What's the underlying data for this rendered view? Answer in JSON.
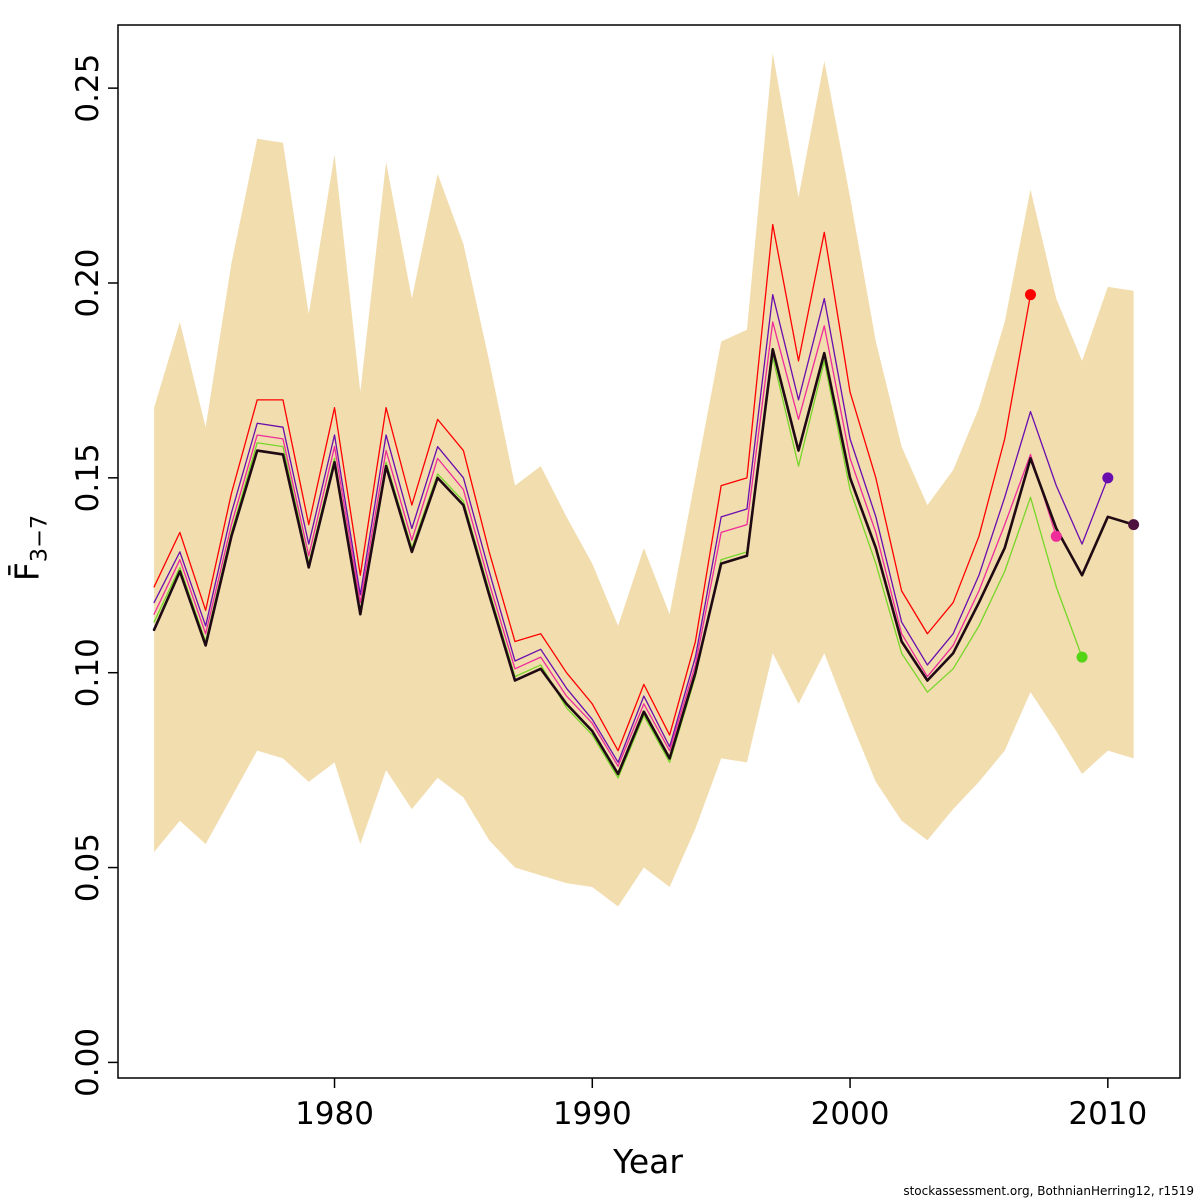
{
  "footer": {
    "text": "stockassessment.org, BothnianHerring12, r1519"
  },
  "axes": {
    "xlabel": "Year",
    "ylabel_main": "F̄",
    "ylabel_sub": "3−7",
    "x_ticks": [
      1980,
      1990,
      2000,
      2010
    ],
    "y_ticks": [
      "0.00",
      "0.05",
      "0.10",
      "0.15",
      "0.20",
      "0.25"
    ],
    "x_range": [
      1971.6,
      2012.8
    ],
    "y_range": [
      -0.004,
      0.2662
    ]
  },
  "chart_data": {
    "type": "line",
    "title": "",
    "xlabel": "Year",
    "ylabel": "F̄3−7",
    "legend_position": "none",
    "grid": false,
    "x": [
      1973,
      1974,
      1975,
      1976,
      1977,
      1978,
      1979,
      1980,
      1981,
      1982,
      1983,
      1984,
      1985,
      1986,
      1987,
      1988,
      1989,
      1990,
      1991,
      1992,
      1993,
      1994,
      1995,
      1996,
      1997,
      1998,
      1999,
      2000,
      2001,
      2002,
      2003,
      2004,
      2005,
      2006,
      2007,
      2008,
      2009,
      2010,
      2011
    ],
    "band": {
      "name": "confidence-interval",
      "color": "#f2ddae",
      "upper": [
        0.168,
        0.19,
        0.163,
        0.205,
        0.237,
        0.236,
        0.192,
        0.233,
        0.172,
        0.231,
        0.196,
        0.228,
        0.21,
        0.18,
        0.148,
        0.153,
        0.14,
        0.128,
        0.112,
        0.132,
        0.115,
        0.15,
        0.185,
        0.188,
        0.259,
        0.222,
        0.257,
        0.222,
        0.185,
        0.158,
        0.143,
        0.152,
        0.168,
        0.19,
        0.224,
        0.196,
        0.18,
        0.199,
        0.198
      ],
      "lower": [
        0.054,
        0.062,
        0.056,
        0.068,
        0.08,
        0.078,
        0.072,
        0.077,
        0.056,
        0.075,
        0.065,
        0.073,
        0.068,
        0.057,
        0.05,
        0.048,
        0.046,
        0.045,
        0.04,
        0.05,
        0.045,
        0.06,
        0.078,
        0.077,
        0.105,
        0.092,
        0.105,
        0.088,
        0.072,
        0.062,
        0.057,
        0.065,
        0.072,
        0.08,
        0.095,
        0.085,
        0.074,
        0.08,
        0.078
      ]
    },
    "series": [
      {
        "name": "retro-2007",
        "color": "#ff0000",
        "dot_color": "#ff0000",
        "width": 1.3,
        "end_year": 2007,
        "end_value": 0.197,
        "values": [
          0.122,
          0.136,
          0.116,
          0.146,
          0.17,
          0.17,
          0.138,
          0.168,
          0.125,
          0.168,
          0.143,
          0.165,
          0.157,
          0.131,
          0.108,
          0.11,
          0.1,
          0.092,
          0.08,
          0.097,
          0.084,
          0.108,
          0.148,
          0.15,
          0.215,
          0.18,
          0.213,
          0.172,
          0.15,
          0.121,
          0.11,
          0.118,
          0.135,
          0.16,
          0.197
        ]
      },
      {
        "name": "retro-2010",
        "color": "#6a0dad",
        "dot_color": "#6a0dad",
        "width": 1.3,
        "end_year": 2010,
        "end_value": 0.15,
        "values": [
          0.118,
          0.131,
          0.112,
          0.141,
          0.164,
          0.163,
          0.133,
          0.161,
          0.12,
          0.161,
          0.137,
          0.158,
          0.15,
          0.126,
          0.103,
          0.106,
          0.096,
          0.088,
          0.077,
          0.094,
          0.081,
          0.104,
          0.14,
          0.142,
          0.197,
          0.17,
          0.196,
          0.16,
          0.14,
          0.113,
          0.102,
          0.11,
          0.125,
          0.145,
          0.167,
          0.148,
          0.133,
          0.15
        ]
      },
      {
        "name": "retro-2008",
        "color": "#ee2c9a",
        "dot_color": "#ee2c9a",
        "width": 1.3,
        "end_year": 2008,
        "end_value": 0.135,
        "values": [
          0.115,
          0.129,
          0.11,
          0.138,
          0.161,
          0.16,
          0.13,
          0.158,
          0.118,
          0.157,
          0.134,
          0.155,
          0.147,
          0.123,
          0.101,
          0.104,
          0.094,
          0.087,
          0.076,
          0.092,
          0.08,
          0.102,
          0.136,
          0.138,
          0.19,
          0.165,
          0.189,
          0.155,
          0.136,
          0.11,
          0.099,
          0.107,
          0.121,
          0.138,
          0.156,
          0.135
        ]
      },
      {
        "name": "retro-2009",
        "color": "#77d62a",
        "dot_color": "#55d415",
        "width": 1.3,
        "end_year": 2009,
        "end_value": 0.104,
        "values": [
          0.113,
          0.127,
          0.108,
          0.136,
          0.159,
          0.158,
          0.128,
          0.155,
          0.116,
          0.154,
          0.132,
          0.151,
          0.144,
          0.121,
          0.099,
          0.102,
          0.091,
          0.084,
          0.073,
          0.089,
          0.077,
          0.099,
          0.129,
          0.131,
          0.181,
          0.153,
          0.18,
          0.147,
          0.128,
          0.105,
          0.095,
          0.101,
          0.112,
          0.126,
          0.145,
          0.122,
          0.104
        ]
      },
      {
        "name": "final-2011",
        "color": "#1f0a14",
        "dot_color": "#4d1240",
        "width": 2.6,
        "end_year": 2011,
        "end_value": 0.138,
        "values": [
          0.111,
          0.126,
          0.107,
          0.135,
          0.157,
          0.156,
          0.127,
          0.154,
          0.115,
          0.153,
          0.131,
          0.15,
          0.143,
          0.12,
          0.098,
          0.101,
          0.092,
          0.085,
          0.074,
          0.09,
          0.078,
          0.1,
          0.128,
          0.13,
          0.183,
          0.157,
          0.182,
          0.15,
          0.132,
          0.108,
          0.098,
          0.105,
          0.118,
          0.132,
          0.155,
          0.137,
          0.125,
          0.14,
          0.138
        ]
      }
    ]
  }
}
